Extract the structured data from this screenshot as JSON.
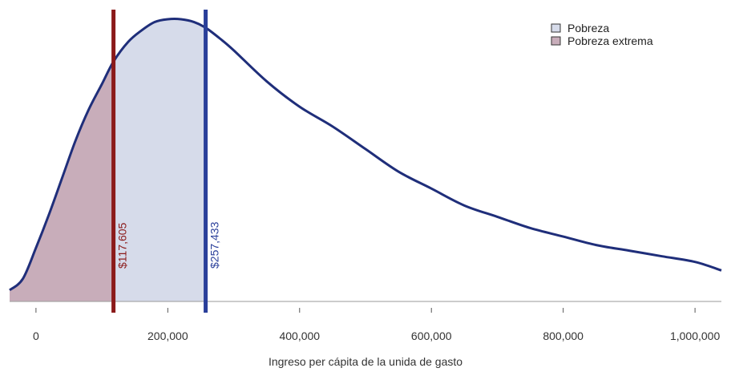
{
  "chart_data": {
    "type": "area",
    "title": "",
    "xlabel": "Ingreso per cápita de la unida de gasto",
    "ylabel": "",
    "xlim": [
      -40000,
      1040000
    ],
    "ylim": [
      0,
      1
    ],
    "x_ticks": [
      0,
      200000,
      400000,
      600000,
      800000,
      1000000
    ],
    "x_tick_labels": [
      "0",
      "200,000",
      "400,000",
      "600,000",
      "800,000",
      "1,000,000"
    ],
    "grid": false,
    "legend_position": "top-right",
    "density_curve": {
      "x": [
        -40000,
        -20000,
        0,
        20000,
        40000,
        60000,
        80000,
        100000,
        117605,
        140000,
        160000,
        180000,
        200000,
        220000,
        240000,
        257433,
        280000,
        300000,
        350000,
        400000,
        450000,
        500000,
        550000,
        600000,
        650000,
        700000,
        750000,
        800000,
        850000,
        900000,
        950000,
        1000000,
        1040000
      ],
      "y": [
        0.04,
        0.08,
        0.19,
        0.31,
        0.44,
        0.57,
        0.68,
        0.77,
        0.85,
        0.92,
        0.96,
        0.99,
        1.0,
        1.0,
        0.99,
        0.97,
        0.93,
        0.89,
        0.78,
        0.69,
        0.62,
        0.54,
        0.46,
        0.4,
        0.34,
        0.3,
        0.26,
        0.23,
        0.2,
        0.18,
        0.16,
        0.14,
        0.11
      ],
      "color": "#1f2e7a"
    },
    "series": [
      {
        "name": "Pobreza extrema",
        "x_range": [
          -40000,
          117605
        ],
        "color": "#c8adba"
      },
      {
        "name": "Pobreza",
        "x_range": [
          117605,
          257433
        ],
        "color": "#d6dbea"
      }
    ],
    "annotations": [
      {
        "x": 117605,
        "label": "$117,605",
        "color": "#8b1a1a"
      },
      {
        "x": 257433,
        "label": "$257,433",
        "color": "#2a3f9a"
      }
    ]
  }
}
